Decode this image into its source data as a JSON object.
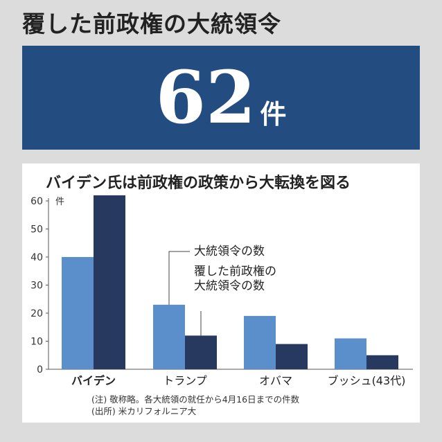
{
  "headline": "覆した前政権の大統領令",
  "banner": {
    "number": "62",
    "unit": "件"
  },
  "chart_data": {
    "type": "bar",
    "title": "バイデン氏は前政権の政策から大転換を図る",
    "ylabel": "件",
    "ylim": [
      0,
      60
    ],
    "yticks": [
      0,
      10,
      20,
      30,
      40,
      50,
      60
    ],
    "categories": [
      "バイデン",
      "トランプ",
      "オバマ",
      "ブッシュ(43代)"
    ],
    "series": [
      {
        "name": "大統領令の数",
        "values": [
          40,
          23,
          19,
          11
        ],
        "color": "#5b8fcb"
      },
      {
        "name": "覆した前政権の大統領令の数",
        "values": [
          62,
          12,
          9,
          5
        ],
        "color": "#27395f"
      }
    ],
    "annotations": [
      "大統領令の数",
      "覆した前政権の",
      "大統領令の数"
    ]
  },
  "notes": [
    "(注) 敬称略。各大統領の就任から4月16日までの件数",
    "(出所) 米カリフォルニア大"
  ]
}
